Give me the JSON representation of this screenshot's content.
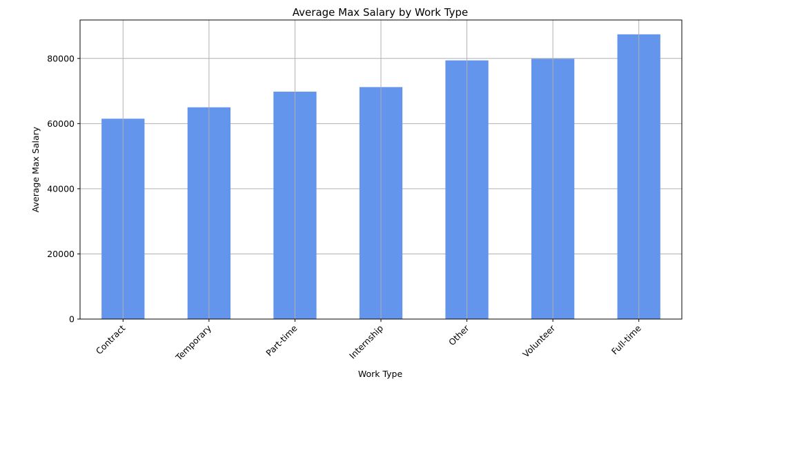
{
  "chart_data": {
    "type": "bar",
    "title": "Average Max Salary by Work Type",
    "xlabel": "Work Type",
    "ylabel": "Average Max Salary",
    "categories": [
      "Contract",
      "Temporary",
      "Part-time",
      "Internship",
      "Other",
      "Volunteer",
      "Full-time"
    ],
    "values": [
      61500,
      65000,
      69800,
      71200,
      79400,
      79900,
      87400
    ],
    "ylim": [
      0,
      91800
    ],
    "yticks": [
      0,
      20000,
      40000,
      60000,
      80000
    ],
    "ytick_labels": [
      "0",
      "20000",
      "40000",
      "60000",
      "80000"
    ],
    "grid": true,
    "legend": "none",
    "bar_color": "#6495ED",
    "grid_color": "#b0b0b0"
  }
}
